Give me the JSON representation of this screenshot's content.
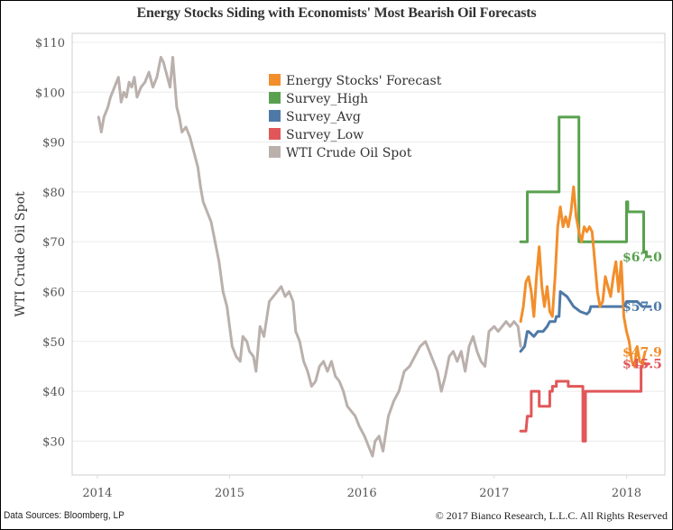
{
  "chart_data": {
    "type": "line",
    "title": "Energy Stocks Siding with Economists' Most Bearish Oil Forecasts",
    "xlabel": "",
    "ylabel": "WTI Crude Oil Spot",
    "xlim": [
      2013.81,
      2018.29
    ],
    "ylim": [
      23.2,
      111.8
    ],
    "x_ticks": [
      2014,
      2015,
      2016,
      2017,
      2018
    ],
    "x_tick_labels": [
      "2014",
      "2015",
      "2016",
      "2017",
      "2018"
    ],
    "y_ticks": [
      30,
      40,
      50,
      60,
      70,
      80,
      90,
      100,
      110
    ],
    "y_tick_labels": [
      "$30",
      "$40",
      "$50",
      "$60",
      "$70",
      "$80",
      "$90",
      "$100",
      "$110"
    ],
    "grid": true,
    "legend_position": "top-center",
    "legend": [
      "Energy Stocks' Forecast",
      "Survey_High",
      "Survey_Avg",
      "Survey_Low",
      "WTI Crude Oil Spot"
    ],
    "series": [
      {
        "name": "WTI Crude Oil Spot",
        "color": "#bab0ac",
        "x": [
          2014.01,
          2014.03,
          2014.05,
          2014.08,
          2014.1,
          2014.13,
          2014.16,
          2014.18,
          2014.2,
          2014.22,
          2014.24,
          2014.26,
          2014.28,
          2014.3,
          2014.33,
          2014.36,
          2014.39,
          2014.42,
          2014.45,
          2014.48,
          2014.5,
          2014.53,
          2014.55,
          2014.57,
          2014.6,
          2014.62,
          2014.64,
          2014.67,
          2014.7,
          2014.73,
          2014.76,
          2014.78,
          2014.8,
          2014.83,
          2014.86,
          2014.89,
          2014.92,
          2014.95,
          2014.98,
          2015.0,
          2015.02,
          2015.05,
          2015.08,
          2015.1,
          2015.13,
          2015.15,
          2015.18,
          2015.2,
          2015.23,
          2015.26,
          2015.3,
          2015.33,
          2015.36,
          2015.39,
          2015.42,
          2015.45,
          2015.48,
          2015.5,
          2015.53,
          2015.56,
          2015.59,
          2015.62,
          2015.65,
          2015.68,
          2015.71,
          2015.74,
          2015.77,
          2015.8,
          2015.83,
          2015.86,
          2015.89,
          2015.92,
          2015.95,
          2015.98,
          2016.02,
          2016.05,
          2016.08,
          2016.1,
          2016.13,
          2016.16,
          2016.2,
          2016.24,
          2016.28,
          2016.32,
          2016.36,
          2016.4,
          2016.44,
          2016.48,
          2016.51,
          2016.54,
          2016.57,
          2016.6,
          2016.63,
          2016.66,
          2016.69,
          2016.72,
          2016.75,
          2016.78,
          2016.81,
          2016.84,
          2016.87,
          2016.9,
          2016.93,
          2016.96,
          2017.0,
          2017.03,
          2017.06,
          2017.09,
          2017.12,
          2017.15,
          2017.18,
          2017.2
        ],
        "values": [
          95,
          92,
          95,
          97,
          99,
          101,
          103,
          98,
          100,
          99,
          102,
          101,
          103,
          99,
          101,
          102,
          104,
          101,
          103,
          107,
          106,
          103,
          101,
          107,
          97,
          95,
          92,
          93,
          91,
          88,
          85,
          81,
          78,
          76,
          74,
          70,
          66,
          60,
          57,
          53,
          49,
          47,
          46,
          51,
          50,
          48,
          47,
          44,
          53,
          51,
          58,
          59,
          60,
          61,
          59,
          60,
          58,
          52,
          50,
          46,
          44,
          41,
          42,
          45,
          46,
          44,
          46,
          43,
          42,
          40,
          37,
          36,
          35,
          33,
          31,
          29,
          27,
          30,
          31,
          28,
          35,
          38,
          40,
          44,
          45,
          47,
          49,
          50,
          48,
          46,
          44,
          40,
          43,
          47,
          48,
          46,
          48,
          44,
          49,
          51,
          48,
          46,
          45,
          52,
          53,
          52,
          53,
          54,
          53,
          54,
          53,
          49
        ]
      },
      {
        "name": "Energy Stocks' Forecast",
        "color": "#f28e2b",
        "x": [
          2017.2,
          2017.22,
          2017.24,
          2017.26,
          2017.28,
          2017.3,
          2017.32,
          2017.34,
          2017.36,
          2017.38,
          2017.4,
          2017.42,
          2017.44,
          2017.46,
          2017.48,
          2017.5,
          2017.52,
          2017.54,
          2017.56,
          2017.58,
          2017.6,
          2017.62,
          2017.64,
          2017.66,
          2017.68,
          2017.7,
          2017.72,
          2017.74,
          2017.76,
          2017.78,
          2017.8,
          2017.82,
          2017.84,
          2017.86,
          2017.88,
          2017.9,
          2017.92,
          2017.94,
          2017.96,
          2017.98,
          2018.0,
          2018.02,
          2018.04,
          2018.06,
          2018.08,
          2018.1,
          2018.12,
          2018.14
        ],
        "values": [
          54,
          57,
          62,
          63,
          60,
          55,
          63,
          69,
          61,
          57,
          61,
          56,
          55,
          63,
          73,
          77,
          73,
          75,
          73,
          76,
          81,
          75,
          72,
          70,
          73,
          72,
          73,
          72,
          66,
          60,
          57,
          58,
          63,
          61,
          59,
          63,
          66,
          60,
          66,
          55,
          52,
          50,
          46,
          45,
          49,
          46,
          45.5,
          47.9
        ]
      },
      {
        "name": "Survey_High",
        "color": "#59a14f",
        "x": [
          2017.2,
          2017.25,
          2017.25,
          2017.49,
          2017.49,
          2017.64,
          2017.64,
          2018.0,
          2018.0,
          2018.01,
          2018.01,
          2018.13,
          2018.13,
          2018.15,
          2018.15,
          2018.18
        ],
        "values": [
          70,
          70,
          80,
          80,
          95,
          95,
          70,
          70,
          78,
          78,
          76,
          76,
          68,
          68,
          67,
          67
        ]
      },
      {
        "name": "Survey_Avg",
        "color": "#4e79a7",
        "x": [
          2017.2,
          2017.23,
          2017.25,
          2017.26,
          2017.3,
          2017.33,
          2017.37,
          2017.4,
          2017.42,
          2017.46,
          2017.47,
          2017.49,
          2017.5,
          2017.55,
          2017.6,
          2017.65,
          2017.7,
          2017.72,
          2017.73,
          2017.8,
          2017.9,
          2017.98,
          2018.0,
          2018.08,
          2018.12,
          2018.18
        ],
        "values": [
          48,
          49,
          52,
          52,
          51,
          52,
          52,
          53,
          54,
          54,
          55,
          55,
          60,
          59,
          57,
          56,
          55.5,
          56,
          57,
          57,
          57,
          57,
          58,
          58,
          57,
          57
        ]
      },
      {
        "name": "Survey_Low",
        "color": "#e15759",
        "x": [
          2017.2,
          2017.24,
          2017.25,
          2017.28,
          2017.28,
          2017.34,
          2017.34,
          2017.42,
          2017.42,
          2017.44,
          2017.44,
          2017.47,
          2017.47,
          2017.56,
          2017.56,
          2017.67,
          2017.67,
          2017.69,
          2017.69,
          2018.11,
          2018.11,
          2018.12,
          2018.12,
          2018.17
        ],
        "values": [
          32,
          32,
          35,
          35,
          40,
          40,
          37,
          37,
          40,
          40,
          41,
          41,
          42,
          42,
          41,
          41,
          30,
          30,
          40,
          40,
          45,
          45,
          45.5,
          45.5
        ]
      }
    ],
    "annotations": [
      {
        "text": "$67.0",
        "series": "Survey_High",
        "x": 2018.18,
        "y": 67.0
      },
      {
        "text": "$57.0",
        "series": "Survey_Avg",
        "x": 2018.18,
        "y": 57.0
      },
      {
        "text": "$47.9",
        "series": "Energy Stocks' Forecast",
        "x": 2018.14,
        "y": 47.9
      },
      {
        "text": "$45.5",
        "series": "Survey_Low",
        "x": 2018.17,
        "y": 45.5
      }
    ]
  },
  "footer": {
    "source": "Data Sources: Bloomberg, LP",
    "copyright": "© 2017 Bianco Research, L.L.C. All Rights Reserved"
  }
}
